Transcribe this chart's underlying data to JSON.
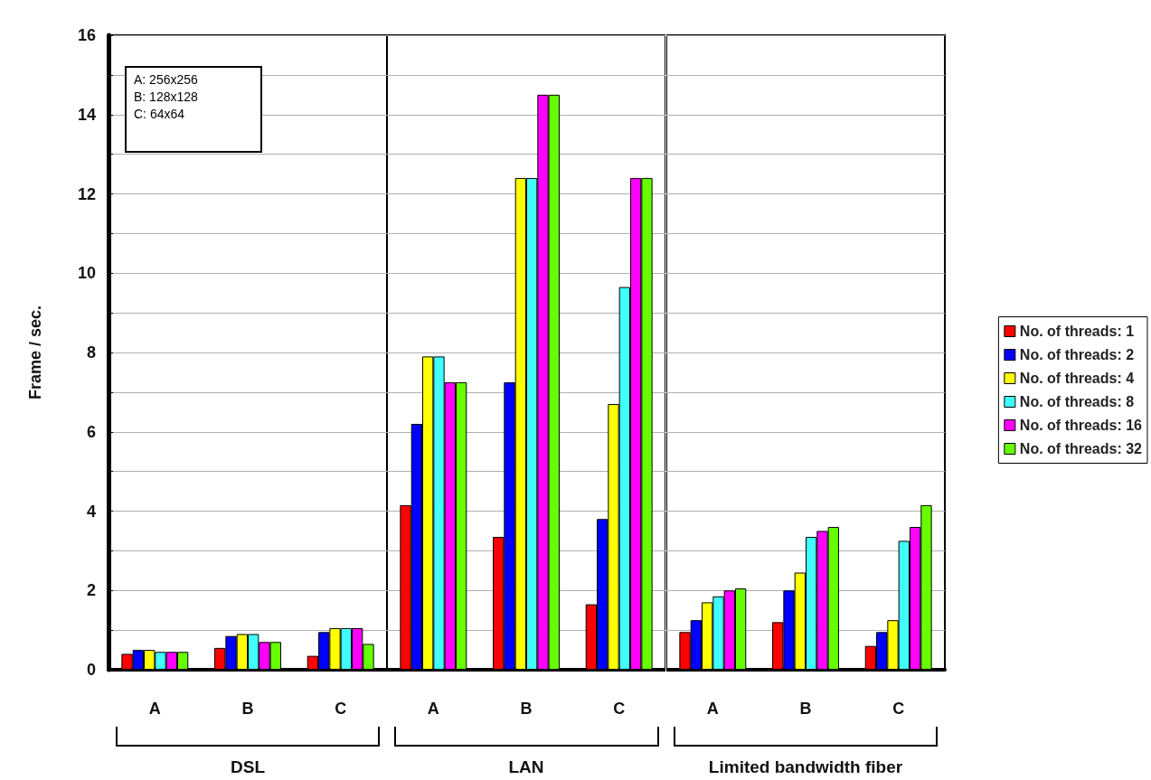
{
  "chart_data": [
    {
      "type": "bar",
      "categories": [
        "A",
        "B",
        "C"
      ],
      "xlabel": "DSL",
      "ylabel": "Frame / sec.",
      "ylim": [
        0,
        16
      ],
      "yticks": [
        0,
        {
          "value": 1,
          "label": null
        },
        2,
        {
          "value": 3,
          "label": null
        },
        4,
        {
          "value": 5,
          "label": null
        },
        6,
        {
          "value": 7,
          "label": null
        },
        8,
        {
          "value": 9,
          "label": null
        },
        10,
        {
          "value": 11,
          "label": null
        },
        12,
        {
          "value": 13,
          "label": null
        },
        14,
        {
          "value": 15,
          "label": null
        },
        16
      ],
      "grid": "y",
      "legend": false,
      "annotations": [
        "A: 256x256",
        "B: 128x128",
        "C: 64x64"
      ],
      "series": [
        {
          "color": "#ff0000",
          "values": [
            0.4,
            0.55,
            0.35
          ]
        },
        {
          "color": "#0000ff",
          "values": [
            0.5,
            0.85,
            0.95
          ]
        },
        {
          "color": "#ffff00",
          "values": [
            0.5,
            0.9,
            1.05
          ]
        },
        {
          "color": "#40ffff",
          "values": [
            0.45,
            0.9,
            1.05
          ]
        },
        {
          "color": "#ff00ff",
          "values": [
            0.45,
            0.7,
            1.05
          ]
        },
        {
          "color": "#66ff00",
          "values": [
            0.45,
            0.7,
            0.65
          ]
        }
      ]
    },
    {
      "type": "bar",
      "categories": [
        "A",
        "B",
        "C"
      ],
      "xlabel": "LAN",
      "ylim": [
        0,
        16
      ],
      "yticks": [
        0,
        {
          "value": 1,
          "label": null
        },
        2,
        {
          "value": 3,
          "label": null
        },
        4,
        {
          "value": 5,
          "label": null
        },
        6,
        {
          "value": 7,
          "label": null
        },
        8,
        {
          "value": 9,
          "label": null
        },
        10,
        {
          "value": 11,
          "label": null
        },
        12,
        {
          "value": 13,
          "label": null
        },
        14,
        {
          "value": 15,
          "label": null
        },
        16
      ],
      "grid": "y",
      "legend": false,
      "tick_labels": "x",
      "series": [
        {
          "color": "#ff0000",
          "values": [
            4.15,
            3.35,
            1.65
          ]
        },
        {
          "color": "#0000ff",
          "values": [
            6.2,
            7.25,
            3.8
          ]
        },
        {
          "color": "#ffff00",
          "values": [
            7.9,
            12.4,
            6.7
          ]
        },
        {
          "color": "#40ffff",
          "values": [
            7.9,
            12.4,
            9.65
          ]
        },
        {
          "color": "#ff00ff",
          "values": [
            7.25,
            14.5,
            12.4
          ]
        },
        {
          "color": "#66ff00",
          "values": [
            7.25,
            14.5,
            12.4
          ]
        }
      ]
    },
    {
      "type": "bar",
      "categories": [
        "A",
        "B",
        "C"
      ],
      "xlabel": "Limited bandwidth fiber",
      "ylim": [
        0,
        16
      ],
      "yticks": [
        0,
        {
          "value": 1,
          "label": null
        },
        2,
        {
          "value": 3,
          "label": null
        },
        4,
        {
          "value": 5,
          "label": null
        },
        6,
        {
          "value": 7,
          "label": null
        },
        8,
        {
          "value": 9,
          "label": null
        },
        10,
        {
          "value": 11,
          "label": null
        },
        12,
        {
          "value": 13,
          "label": null
        },
        14,
        {
          "value": 15,
          "label": null
        },
        16
      ],
      "grid": "y",
      "legend": "right",
      "tick_labels": "x",
      "series": [
        {
          "name": "No. of threads: 1",
          "color": "#ff0000",
          "values": [
            0.95,
            1.2,
            0.6
          ]
        },
        {
          "name": "No. of threads: 2",
          "color": "#0000ff",
          "values": [
            1.25,
            2.0,
            0.95
          ]
        },
        {
          "name": "No. of threads: 4",
          "color": "#ffff00",
          "values": [
            1.7,
            2.45,
            1.25
          ]
        },
        {
          "name": "No. of threads: 8",
          "color": "#40ffff",
          "values": [
            1.85,
            3.35,
            3.25
          ]
        },
        {
          "name": "No. of threads: 16",
          "color": "#ff00ff",
          "values": [
            2.0,
            3.5,
            3.6
          ]
        },
        {
          "name": "No. of threads: 32",
          "color": "#66ff00",
          "values": [
            2.05,
            3.6,
            4.15
          ]
        }
      ]
    }
  ]
}
